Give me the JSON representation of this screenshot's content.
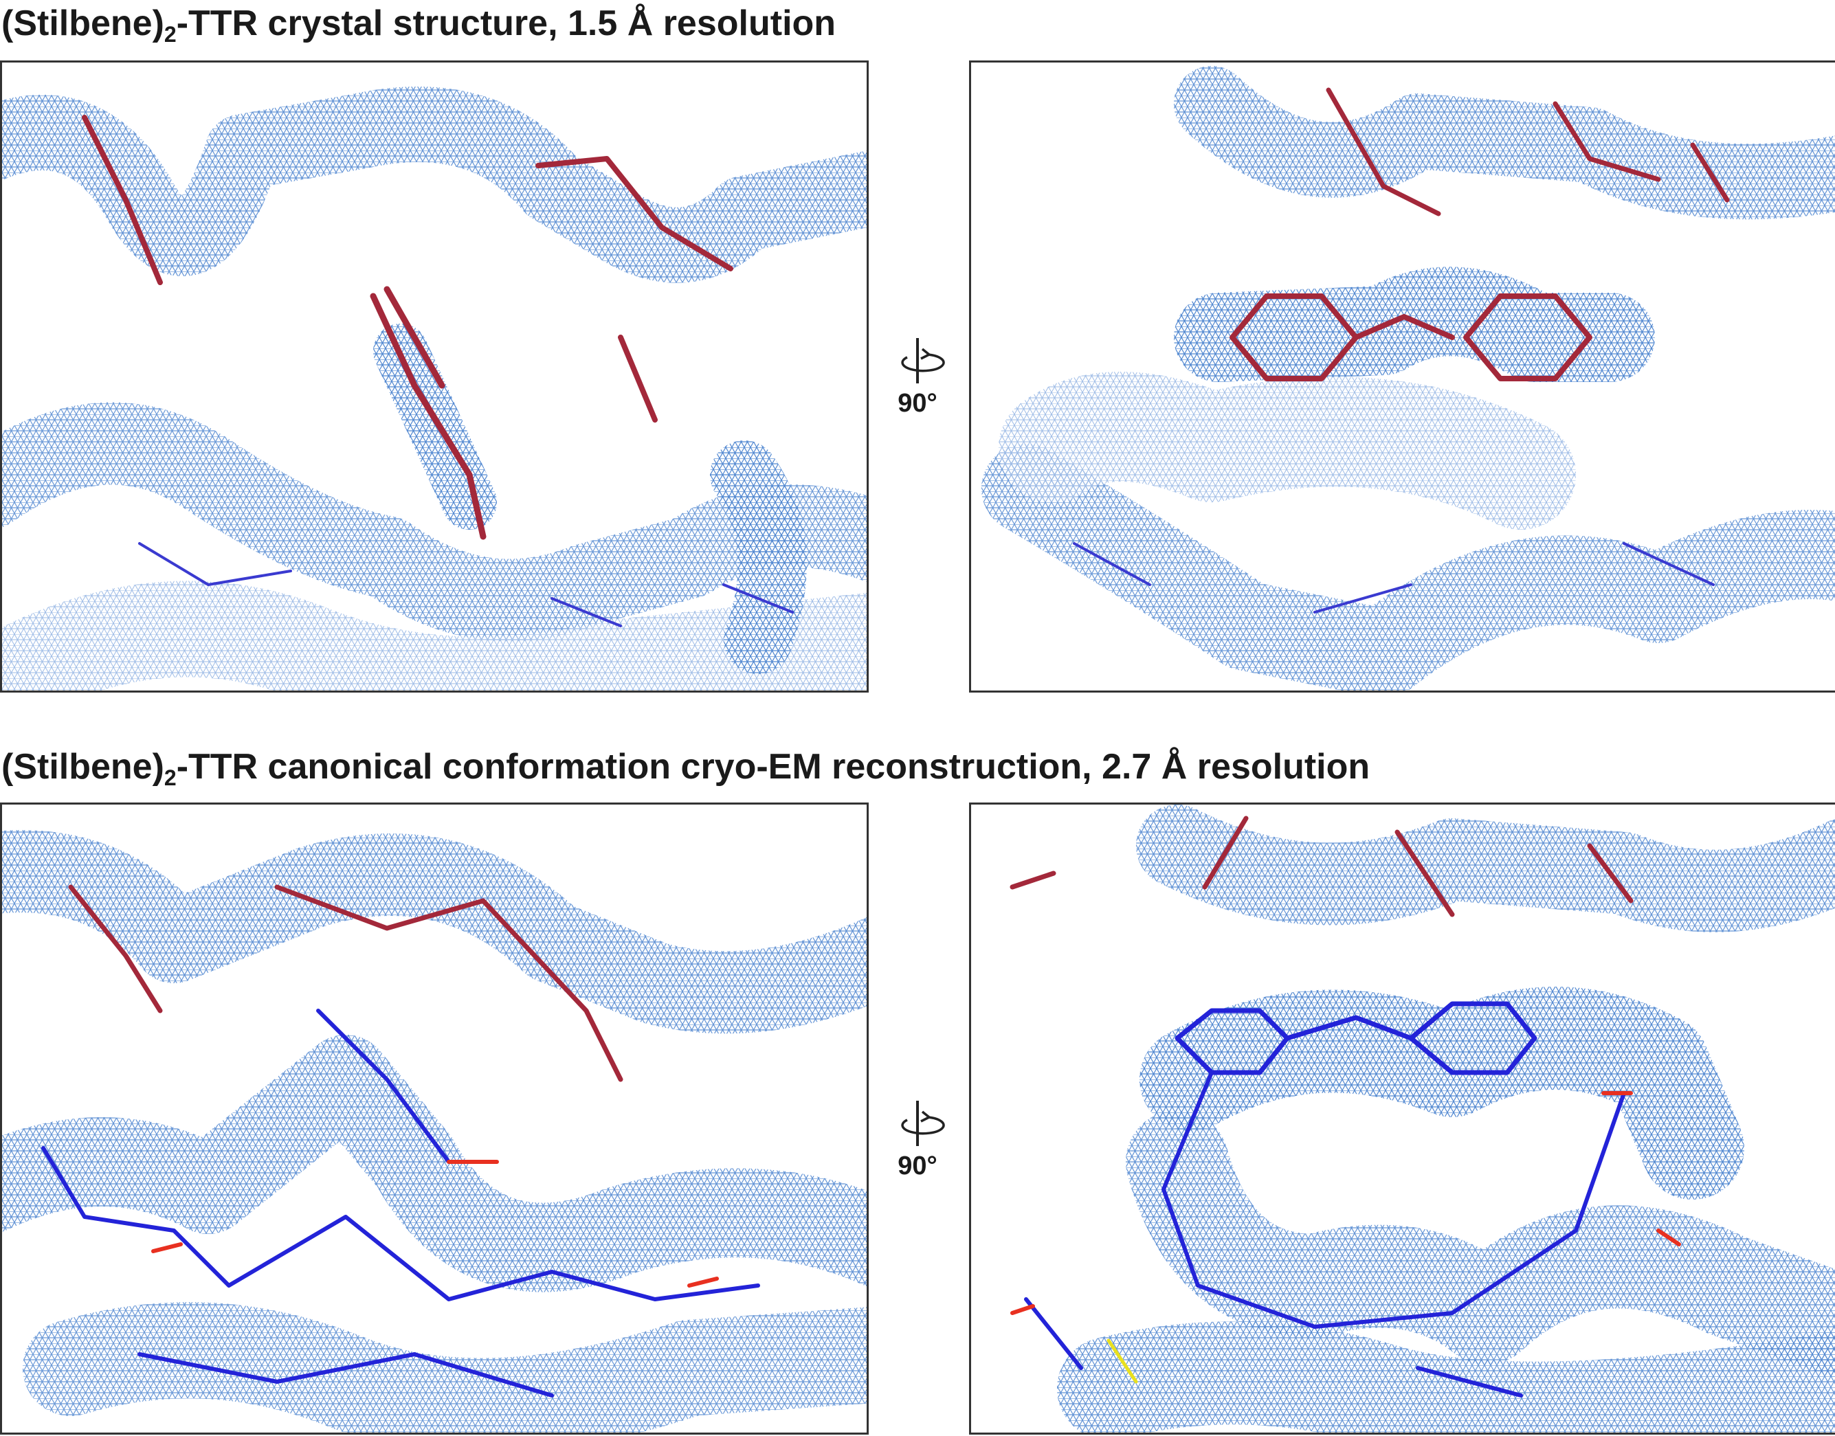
{
  "panels": [
    {
      "title": {
        "text": "(Stilbene)",
        "subscript": "2",
        "rest": "-TTR crystal structure, 1.5 Å resolution"
      },
      "rotation": "90°"
    },
    {
      "title": {
        "text": "(Stilbene)",
        "subscript": "2",
        "rest": "-TTR canonical conformation cryo-EM reconstruction, 2.7 Å resolution"
      },
      "rotation": "90°"
    }
  ]
}
